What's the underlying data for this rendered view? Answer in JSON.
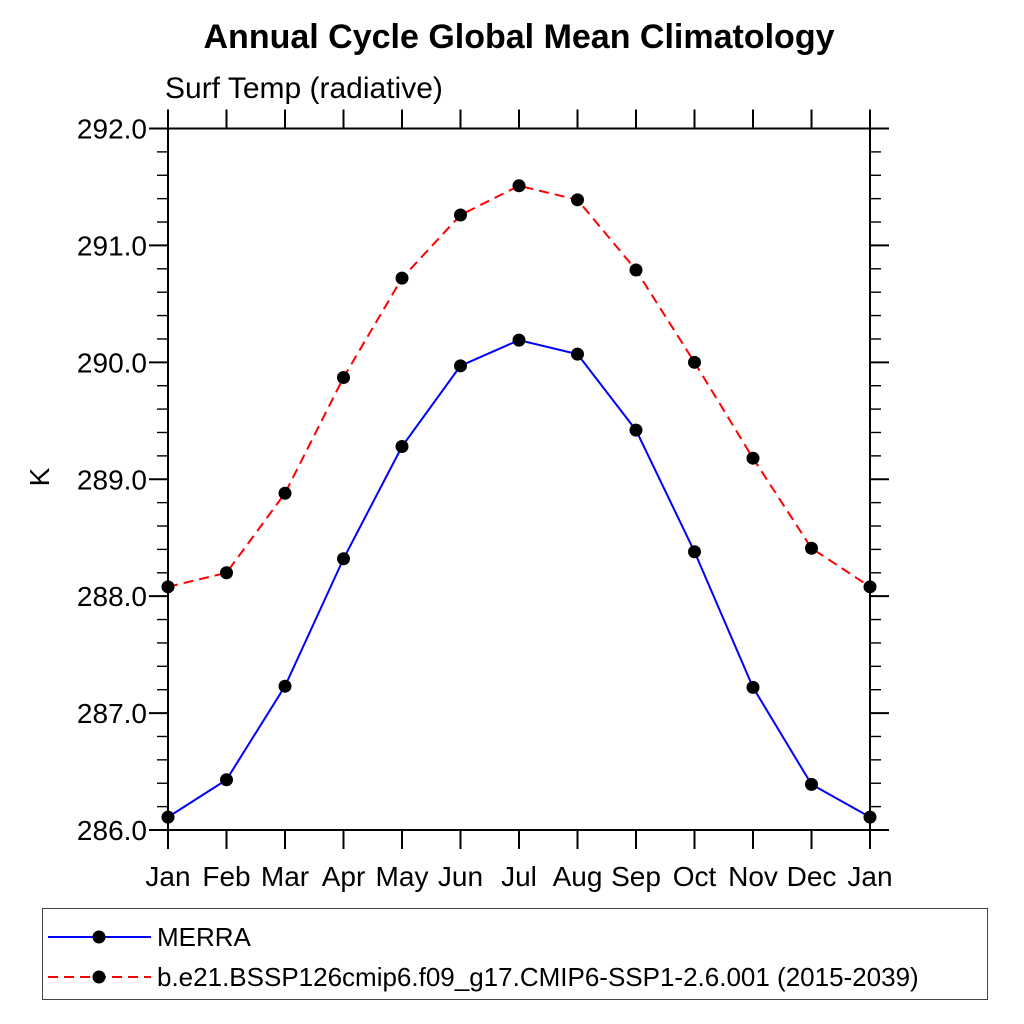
{
  "chart": {
    "title": "Annual Cycle Global Mean Climatology",
    "subtitle": "Surf Temp (radiative)",
    "ylabel": "K"
  },
  "chart_data": {
    "type": "line",
    "title": "Annual Cycle Global Mean Climatology",
    "subtitle": "Surf Temp (radiative)",
    "xlabel": "",
    "ylabel": "K",
    "x_categories": [
      "Jan",
      "Feb",
      "Mar",
      "Apr",
      "May",
      "Jun",
      "Jul",
      "Aug",
      "Sep",
      "Oct",
      "Nov",
      "Dec",
      "Jan"
    ],
    "ylim": [
      286.0,
      292.0
    ],
    "y_ticks": [
      286,
      287,
      288,
      289,
      290,
      291,
      292
    ],
    "y_ticklabels": [
      "286.0",
      "287.0",
      "288.0",
      "289.0",
      "290.0",
      "291.0",
      "292.0"
    ],
    "y_minor_step": 0.2,
    "grid": false,
    "legend_position": "bottom",
    "frame_color": "#000000",
    "series": [
      {
        "name": "MERRA",
        "color": "#0000ff",
        "line_style": "solid",
        "marker": "filled-circle",
        "marker_color": "#000000",
        "values": [
          286.11,
          286.43,
          287.23,
          288.32,
          289.28,
          289.97,
          290.19,
          290.07,
          289.42,
          288.38,
          287.22,
          286.39,
          286.11
        ]
      },
      {
        "name": "b.e21.BSSP126cmip6.f09_g17.CMIP6-SSP1-2.6.001 (2015-2039)",
        "color": "#ff0000",
        "line_style": "dashed",
        "marker": "filled-circle",
        "marker_color": "#000000",
        "values": [
          288.08,
          288.2,
          288.88,
          289.87,
          290.72,
          291.26,
          291.51,
          291.39,
          290.79,
          290.0,
          289.18,
          288.41,
          288.08
        ]
      }
    ]
  }
}
